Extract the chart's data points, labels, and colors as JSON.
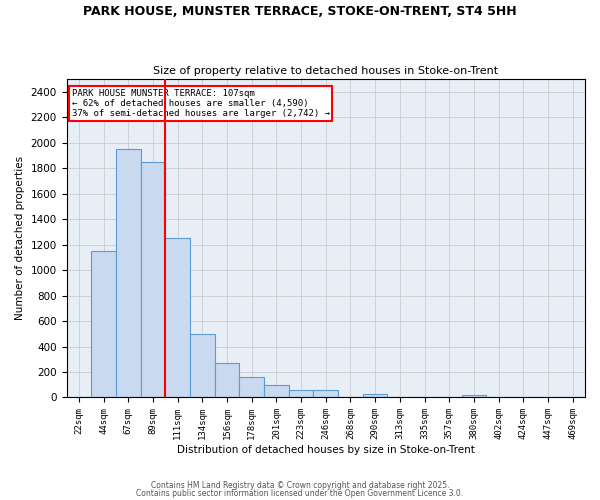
{
  "title_line1": "PARK HOUSE, MUNSTER TERRACE, STOKE-ON-TRENT, ST4 5HH",
  "title_line2": "Size of property relative to detached houses in Stoke-on-Trent",
  "xlabel": "Distribution of detached houses by size in Stoke-on-Trent",
  "ylabel": "Number of detached properties",
  "categories": [
    "22sqm",
    "44sqm",
    "67sqm",
    "89sqm",
    "111sqm",
    "134sqm",
    "156sqm",
    "178sqm",
    "201sqm",
    "223sqm",
    "246sqm",
    "268sqm",
    "290sqm",
    "313sqm",
    "335sqm",
    "357sqm",
    "380sqm",
    "402sqm",
    "424sqm",
    "447sqm",
    "469sqm"
  ],
  "values": [
    0,
    1150,
    1950,
    1850,
    1250,
    500,
    270,
    160,
    100,
    60,
    55,
    0,
    30,
    0,
    0,
    0,
    20,
    0,
    0,
    0,
    0
  ],
  "bar_color": "#c9d9ef",
  "bar_edge_color": "#5b9bd5",
  "grid_color": "#cccccc",
  "background_color": "#e8eef6",
  "annotation_line1": "PARK HOUSE MUNSTER TERRACE: 107sqm",
  "annotation_line2": "← 62% of detached houses are smaller (4,590)",
  "annotation_line3": "37% of semi-detached houses are larger (2,742) →",
  "annotation_box_color": "white",
  "annotation_box_edge_color": "red",
  "red_line_x": 3.5,
  "ylim": [
    0,
    2500
  ],
  "yticks": [
    0,
    200,
    400,
    600,
    800,
    1000,
    1200,
    1400,
    1600,
    1800,
    2000,
    2200,
    2400
  ],
  "footer_line1": "Contains HM Land Registry data © Crown copyright and database right 2025.",
  "footer_line2": "Contains public sector information licensed under the Open Government Licence 3.0."
}
